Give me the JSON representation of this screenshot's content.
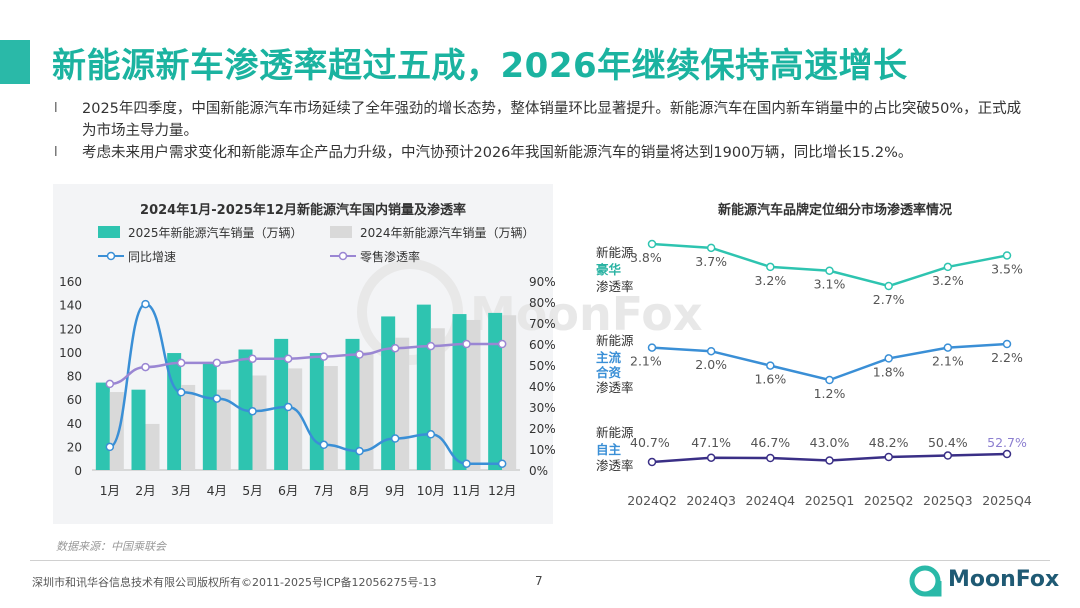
{
  "header": {
    "title": "新能源新车渗透率超过五成，2026年继续保持高速增长"
  },
  "bullets": [
    {
      "marker": "l",
      "text": "2025年四季度，中国新能源汽车市场延续了全年强劲的增长态势，整体销量环比显著提升。新能源汽车在国内新车销量中的占比突破50%，正式成为市场主导力量。"
    },
    {
      "marker": "l",
      "text": "考虑未来用户需求变化和新能源车企产品力升级，中汽协预计2026年我国新能源汽车的销量将达到1900万辆，同比增长15.2%。"
    }
  ],
  "chart_data": [
    {
      "type": "bar",
      "title": "2024年1月-2025年12月新能源汽车国内销量及渗透率",
      "categories": [
        "1月",
        "2月",
        "3月",
        "4月",
        "5月",
        "6月",
        "7月",
        "8月",
        "9月",
        "10月",
        "11月",
        "12月"
      ],
      "series": [
        {
          "name": "2025年新能源汽车销量（万辆）",
          "type": "bar",
          "axis": "left",
          "color": "#2ec4b0",
          "values": [
            74,
            68,
            99,
            91,
            102,
            111,
            99,
            111,
            130,
            140,
            132,
            133
          ]
        },
        {
          "name": "2024年新能源汽车销量（万辆）",
          "type": "bar",
          "axis": "left",
          "color": "#d9d9d9",
          "values": [
            66,
            39,
            72,
            68,
            80,
            86,
            88,
            100,
            112,
            120,
            127,
            131
          ]
        },
        {
          "name": "同比增速",
          "type": "line",
          "axis": "right",
          "color": "#3a8fd6",
          "values": [
            11,
            79,
            37,
            34,
            28,
            30,
            12,
            9,
            15,
            17,
            3,
            3
          ]
        },
        {
          "name": "零售渗透率",
          "type": "line",
          "axis": "right",
          "color": "#9a86d3",
          "values": [
            41,
            49,
            51,
            51,
            53,
            53,
            54,
            55,
            58,
            59,
            60,
            60
          ]
        }
      ],
      "y_left": {
        "min": 0,
        "max": 160,
        "ticks": [
          "0",
          "20",
          "40",
          "60",
          "80",
          "100",
          "120",
          "140",
          "160"
        ]
      },
      "y_right": {
        "min": 0,
        "max": 90,
        "ticks": [
          "0%",
          "10%",
          "20%",
          "30%",
          "40%",
          "50%",
          "60%",
          "70%",
          "80%",
          "90%"
        ]
      },
      "legend": [
        "2025年新能源汽车销量（万辆）",
        "2024年新能源汽车销量（万辆）",
        "同比增速",
        "零售渗透率"
      ]
    },
    {
      "type": "line",
      "title": "新能源汽车品牌定位细分市场渗透率情况",
      "categories": [
        "2024Q2",
        "2024Q3",
        "2024Q4",
        "2025Q1",
        "2025Q2",
        "2025Q3",
        "2025Q4"
      ],
      "series": [
        {
          "name": "新能源豪华渗透率",
          "label_lines": [
            "新能源",
            "豪华",
            "渗透率"
          ],
          "color": "#2ec4b0",
          "values": [
            3.8,
            3.7,
            3.2,
            3.1,
            2.7,
            3.2,
            3.5
          ],
          "labels": [
            "3.8%",
            "3.7%",
            "3.2%",
            "3.1%",
            "2.7%",
            "3.2%",
            "3.5%"
          ]
        },
        {
          "name": "新能源主流合资渗透率",
          "label_lines": [
            "新能源",
            "主流",
            "合资",
            "渗透率"
          ],
          "color": "#3a8fd6",
          "values": [
            2.1,
            2.0,
            1.6,
            1.2,
            1.8,
            2.1,
            2.2
          ],
          "labels": [
            "2.1%",
            "2.0%",
            "1.6%",
            "1.2%",
            "1.8%",
            "2.1%",
            "2.2%"
          ]
        },
        {
          "name": "新能源自主渗透率",
          "label_lines": [
            "新能源",
            "自主",
            "渗透率"
          ],
          "color": "#3a2f86",
          "values": [
            40.7,
            47.1,
            46.7,
            43.0,
            48.2,
            50.4,
            52.7
          ],
          "labels": [
            "40.7%",
            "47.1%",
            "46.7%",
            "43.0%",
            "48.2%",
            "50.4%",
            "52.7%"
          ]
        }
      ]
    }
  ],
  "source": "数据来源：中国乘联会",
  "watermark": "MoonFox",
  "footer": {
    "copyright": "深圳市和讯华谷信息技术有限公司版权所有©2011-2025号ICP备12056275号-13",
    "page": "7",
    "logo": "MoonFox"
  },
  "colors": {
    "accent": "#1bb3a0",
    "brand_dark": "#1f5a74"
  }
}
